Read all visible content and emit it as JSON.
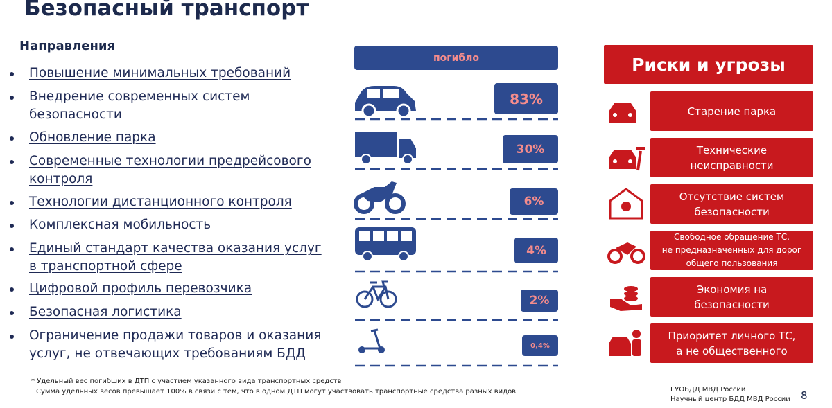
{
  "title": "Безопасный транспорт",
  "directions": {
    "heading": "Направления",
    "items": [
      [
        "Повышение минимальных требований"
      ],
      [
        "Внедрение современных систем",
        "безопасности"
      ],
      [
        "Обновление парка"
      ],
      [
        "Современные технологии предрейсового",
        "контроля"
      ],
      [
        "Технологии дистанционного контроля"
      ],
      [
        "Комплексная мобильность"
      ],
      [
        "Единый стандарт качества оказания услуг",
        "в транспортной сфере"
      ],
      [
        "Цифровой профиль перевозчика"
      ],
      [
        "Безопасная логистика"
      ],
      [
        "Ограничение продажи товаров и оказания",
        "услуг, не отвечающих требованиям БДД"
      ]
    ]
  },
  "deaths": {
    "header": "погибло",
    "rows": [
      "83%",
      "30%",
      "6%",
      "4%",
      "2%",
      "0,4%"
    ]
  },
  "risks": {
    "header": "Риски и угрозы",
    "items": [
      [
        "Старение парка"
      ],
      [
        "Технические",
        "неисправности"
      ],
      [
        "Отсутствие систем",
        "безопасности"
      ],
      [
        "Свободное обращение ТС,",
        "не предназначенных для дорог",
        "общего пользования"
      ],
      [
        "Экономия на",
        "безопасности"
      ],
      [
        "Приоритет личного ТС,",
        "а не общественного"
      ]
    ]
  },
  "footnote": [
    "* Удельный вес погибших в ДТП с участием указанного вида транспортных средств",
    "Сумма удельных весов превышает 100% в связи с тем, что в одном ДТП могут участвовать транспортные средства разных видов"
  ],
  "organization": [
    "ГУОБДД МВД России",
    "Научный центр БДД МВД России"
  ],
  "page_number": "8"
}
